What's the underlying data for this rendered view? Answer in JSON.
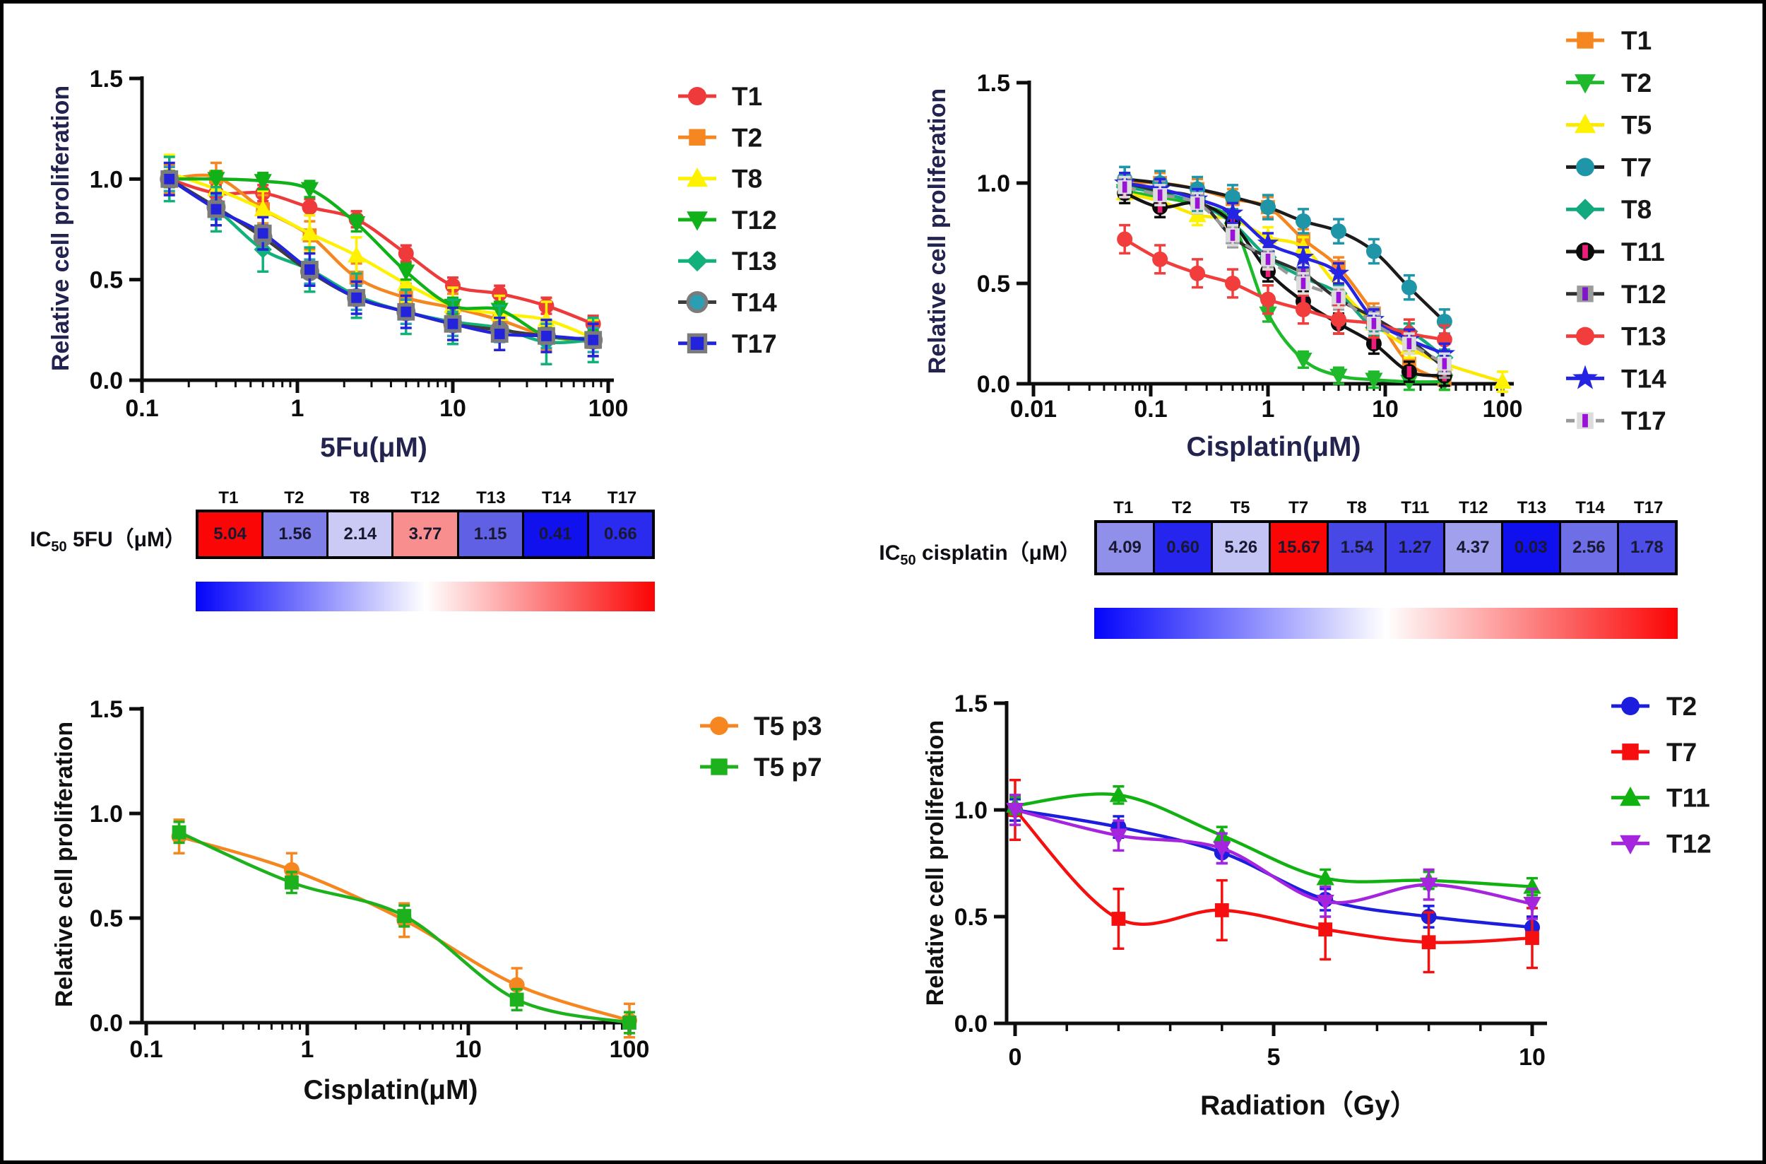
{
  "page": {
    "background": "#ffffff",
    "border_color": "#000000"
  },
  "chart_data": [
    {
      "id": "fu5",
      "type": "line",
      "title": "",
      "ylabel": "Relative cell proliferation",
      "xlabel": "5Fu(μM)",
      "label_color": "#23234f",
      "tick_color": "#0c0c0c",
      "xscale": "log",
      "xlim": [
        0.1,
        100
      ],
      "ylim": [
        0,
        1.5
      ],
      "xticks": [
        0.1,
        1,
        10,
        100
      ],
      "xtick_labels": [
        "0.1",
        "1",
        "10",
        "100"
      ],
      "yticks": [
        0,
        0.5,
        1.0,
        1.5
      ],
      "ytick_labels": [
        "0.0",
        "0.5",
        "1.0",
        "1.5"
      ],
      "legend_position": "right",
      "x": [
        0.15,
        0.3,
        0.6,
        1.2,
        2.4,
        5,
        10,
        20,
        40,
        80
      ],
      "series": [
        {
          "name": "T1",
          "marker": "circle",
          "color": "#ee3a3a",
          "line": "#ee3a3a",
          "err": 0.04,
          "values": [
            1.0,
            0.93,
            0.93,
            0.86,
            0.8,
            0.63,
            0.47,
            0.43,
            0.37,
            0.28
          ]
        },
        {
          "name": "T2",
          "marker": "square",
          "color": "#f6861f",
          "line": "#f6861f",
          "err": 0.07,
          "values": [
            1.0,
            1.01,
            0.85,
            0.72,
            0.51,
            0.41,
            0.36,
            0.3,
            0.22,
            0.19
          ]
        },
        {
          "name": "T8",
          "marker": "triangle",
          "color": "#fef200",
          "line": "#fef200",
          "err": 0.09,
          "values": [
            1.03,
            0.95,
            0.85,
            0.73,
            0.62,
            0.48,
            0.37,
            0.33,
            0.3,
            0.21
          ]
        },
        {
          "name": "T12",
          "marker": "triangle-down",
          "color": "#10b119",
          "line": "#10b119",
          "err": 0.04,
          "values": [
            1.0,
            1.0,
            0.99,
            0.95,
            0.78,
            0.54,
            0.37,
            0.35,
            0.22,
            0.21
          ]
        },
        {
          "name": "T13",
          "marker": "diamond",
          "color": "#12b07b",
          "line": "#12b07b",
          "err": 0.11,
          "values": [
            1.0,
            0.85,
            0.65,
            0.55,
            0.42,
            0.34,
            0.29,
            0.26,
            0.19,
            0.2
          ]
        },
        {
          "name": "T14",
          "marker": "circle",
          "color": "#2b9eb3",
          "stroke": "#7b7b7b",
          "line": "#3c3c3c",
          "err": 0.06,
          "values": [
            1.0,
            0.86,
            0.71,
            0.54,
            0.41,
            0.34,
            0.28,
            0.25,
            0.22,
            0.2
          ]
        },
        {
          "name": "T17",
          "marker": "square",
          "color": "#2323dc",
          "stroke": "#7b7b7b",
          "line": "#2323dc",
          "err": 0.08,
          "values": [
            1.0,
            0.85,
            0.73,
            0.55,
            0.41,
            0.34,
            0.28,
            0.23,
            0.22,
            0.2
          ]
        }
      ]
    },
    {
      "id": "cis",
      "type": "line",
      "title": "",
      "ylabel": "Relative cell proliferation",
      "xlabel": "Cisplatin(μM)",
      "label_color": "#23234f",
      "tick_color": "#0c0c0c",
      "xscale": "log",
      "xlim": [
        0.01,
        100
      ],
      "ylim": [
        0,
        1.5
      ],
      "xticks": [
        0.01,
        0.1,
        1,
        10,
        100
      ],
      "xtick_labels": [
        "0.01",
        "0.1",
        "1",
        "10",
        "100"
      ],
      "yticks": [
        0,
        0.5,
        1.0,
        1.5
      ],
      "ytick_labels": [
        "0.0",
        "0.5",
        "1.0",
        "1.5"
      ],
      "legend_position": "right",
      "x": [
        0.06,
        0.12,
        0.25,
        0.5,
        1,
        2,
        4,
        8,
        16,
        32
      ],
      "series": [
        {
          "name": "T1",
          "marker": "square",
          "color": "#f6861f",
          "line": "#f6861f",
          "err": 0.05,
          "values": [
            1.0,
            1.0,
            0.97,
            0.92,
            0.88,
            0.72,
            0.58,
            0.35,
            0.1,
            0.02
          ]
        },
        {
          "name": "T2",
          "marker": "triangle-down",
          "color": "#1fba2c",
          "line": "#1fba2c",
          "err": 0.04,
          "values": [
            0.96,
            0.93,
            0.89,
            0.8,
            0.35,
            0.12,
            0.04,
            0.02,
            0.01,
            0.01
          ]
        },
        {
          "name": "T5",
          "marker": "triangle",
          "color": "#fef200",
          "line": "#fde802",
          "err": 0.05,
          "x": [
            0.06,
            0.12,
            0.25,
            0.5,
            1,
            2,
            4,
            8,
            16,
            32,
            100
          ],
          "values": [
            0.95,
            0.91,
            0.84,
            0.82,
            0.73,
            0.68,
            0.48,
            0.3,
            0.18,
            0.1,
            0.01
          ]
        },
        {
          "name": "T7",
          "marker": "circle",
          "color": "#1f95a8",
          "line": "#1c1c1c",
          "err": 0.06,
          "values": [
            1.02,
            1.0,
            0.97,
            0.93,
            0.88,
            0.81,
            0.76,
            0.66,
            0.48,
            0.31
          ]
        },
        {
          "name": "T8",
          "marker": "diamond",
          "color": "#12a97e",
          "line": "#12a97e",
          "err": 0.04,
          "values": [
            0.98,
            0.95,
            0.9,
            0.8,
            0.63,
            0.53,
            0.45,
            0.28,
            0.26,
            0.13
          ]
        },
        {
          "name": "T11",
          "marker": "circle",
          "color": "#0b0b0b",
          "inner": "#ed1e79",
          "line": "#141414",
          "err": 0.05,
          "values": [
            0.95,
            0.88,
            0.9,
            0.8,
            0.56,
            0.41,
            0.3,
            0.2,
            0.06,
            0.04
          ]
        },
        {
          "name": "T12",
          "marker": "square",
          "color": "#9b9b9b",
          "inner": "#7f18c9",
          "line": "#2f2f2f",
          "err": 0.05,
          "values": [
            1.0,
            0.96,
            0.92,
            0.73,
            0.63,
            0.55,
            0.42,
            0.33,
            0.22,
            0.08
          ]
        },
        {
          "name": "T13",
          "marker": "circle",
          "color": "#f23d3d",
          "line": "#f23d3d",
          "err": 0.07,
          "values": [
            0.72,
            0.62,
            0.55,
            0.5,
            0.42,
            0.37,
            0.32,
            0.3,
            0.25,
            0.22
          ]
        },
        {
          "name": "T14",
          "marker": "star",
          "color": "#2424e2",
          "line": "#2424e2",
          "err": 0.05,
          "values": [
            1.0,
            0.97,
            0.92,
            0.85,
            0.7,
            0.63,
            0.55,
            0.32,
            0.22,
            0.15
          ]
        },
        {
          "name": "T17",
          "marker": "square",
          "color": "#dcdcdc",
          "inner": "#9a12d8",
          "line": "#9a9a9a",
          "dash": "16 12",
          "err": 0.05,
          "values": [
            0.98,
            0.94,
            0.9,
            0.74,
            0.62,
            0.5,
            0.43,
            0.3,
            0.2,
            0.1
          ]
        }
      ]
    },
    {
      "id": "t5p",
      "type": "line",
      "title": "",
      "ylabel": "Relative cell proliferation",
      "xlabel": "Cisplatin(μM)",
      "label_color": "#111111",
      "tick_color": "#0c0c0c",
      "xscale": "log",
      "xlim": [
        0.1,
        100
      ],
      "ylim": [
        0,
        1.5
      ],
      "xticks": [
        0.1,
        1,
        10,
        100
      ],
      "xtick_labels": [
        "0.1",
        "1",
        "10",
        "100"
      ],
      "yticks": [
        0,
        0.5,
        1.0,
        1.5
      ],
      "ytick_labels": [
        "0.0",
        "0.5",
        "1.0",
        "1.5"
      ],
      "legend_position": "right",
      "x": [
        0.16,
        0.8,
        4,
        20,
        100
      ],
      "series": [
        {
          "name": "T5 p3",
          "marker": "circle",
          "color": "#f6861f",
          "line": "#f6861f",
          "err": 0.08,
          "values": [
            0.89,
            0.73,
            0.49,
            0.18,
            0.01
          ]
        },
        {
          "name": "T5 p7",
          "marker": "square",
          "color": "#1db21d",
          "line": "#1db21d",
          "err": 0.05,
          "values": [
            0.91,
            0.67,
            0.51,
            0.11,
            0.0
          ]
        }
      ]
    },
    {
      "id": "rad",
      "type": "line",
      "title": "",
      "ylabel": "Relative cell proliferation",
      "xlabel": "Radiation（Gy）",
      "label_color": "#111111",
      "tick_color": "#0c0c0c",
      "xscale": "linear",
      "xlim": [
        0,
        10
      ],
      "ylim": [
        0,
        1.5
      ],
      "xticks": [
        0,
        5,
        10
      ],
      "xtick_labels": [
        "0",
        "5",
        "10"
      ],
      "yticks": [
        0,
        0.5,
        1.0,
        1.5
      ],
      "ytick_labels": [
        "0.0",
        "0.5",
        "1.0",
        "1.5"
      ],
      "legend_position": "right",
      "x": [
        0,
        2,
        4,
        6,
        8,
        10
      ],
      "series": [
        {
          "name": "T2",
          "marker": "circle",
          "color": "#1d1dde",
          "line": "#1d1dde",
          "err": 0.05,
          "values": [
            1.0,
            0.92,
            0.8,
            0.58,
            0.5,
            0.45
          ]
        },
        {
          "name": "T7",
          "marker": "square",
          "color": "#f50f0f",
          "line": "#f50f0f",
          "err": 0.14,
          "values": [
            1.0,
            0.49,
            0.53,
            0.44,
            0.38,
            0.4
          ]
        },
        {
          "name": "T11",
          "marker": "triangle",
          "color": "#12b112",
          "line": "#12b112",
          "err": 0.04,
          "values": [
            1.02,
            1.07,
            0.88,
            0.68,
            0.67,
            0.64
          ]
        },
        {
          "name": "T12",
          "marker": "triangle-down",
          "color": "#a524dd",
          "line": "#a524dd",
          "err": 0.07,
          "values": [
            1.0,
            0.88,
            0.82,
            0.57,
            0.65,
            0.56
          ]
        }
      ]
    }
  ],
  "heatmaps": [
    {
      "id": "ic50_5fu",
      "label": {
        "prefix": "IC",
        "sub": "50",
        "rest": " 5FU（μM）"
      },
      "columns": [
        "T1",
        "T2",
        "T8",
        "T12",
        "T13",
        "T14",
        "T17"
      ],
      "values": [
        "5.04",
        "1.56",
        "2.14",
        "3.77",
        "1.15",
        "0.41",
        "0.66"
      ],
      "cell_colors": [
        "#fb0606",
        "#7f7fe9",
        "#cacaf5",
        "#f98e8e",
        "#6060e5",
        "#1111ee",
        "#2b2bef"
      ],
      "value_color": "#181830"
    },
    {
      "id": "ic50_cisplatin",
      "label": {
        "prefix": "IC",
        "sub": "50",
        "rest": " cisplatin（μM）"
      },
      "columns": [
        "T1",
        "T2",
        "T5",
        "T7",
        "T8",
        "T11",
        "T12",
        "T13",
        "T14",
        "T17"
      ],
      "values": [
        "4.09",
        "0.60",
        "5.26",
        "15.67",
        "1.54",
        "1.27",
        "4.37",
        "0.03",
        "2.56",
        "1.78"
      ],
      "cell_colors": [
        "#9090ea",
        "#2525ee",
        "#c3c3f4",
        "#fb0606",
        "#4848e7",
        "#3d3de8",
        "#a0a0ec",
        "#1010ee",
        "#6e6ee6",
        "#4d4de7"
      ],
      "value_color": "#181830"
    }
  ],
  "colorbar_stops": [
    "#0404fb",
    "#ffffff",
    "#fb0404"
  ]
}
